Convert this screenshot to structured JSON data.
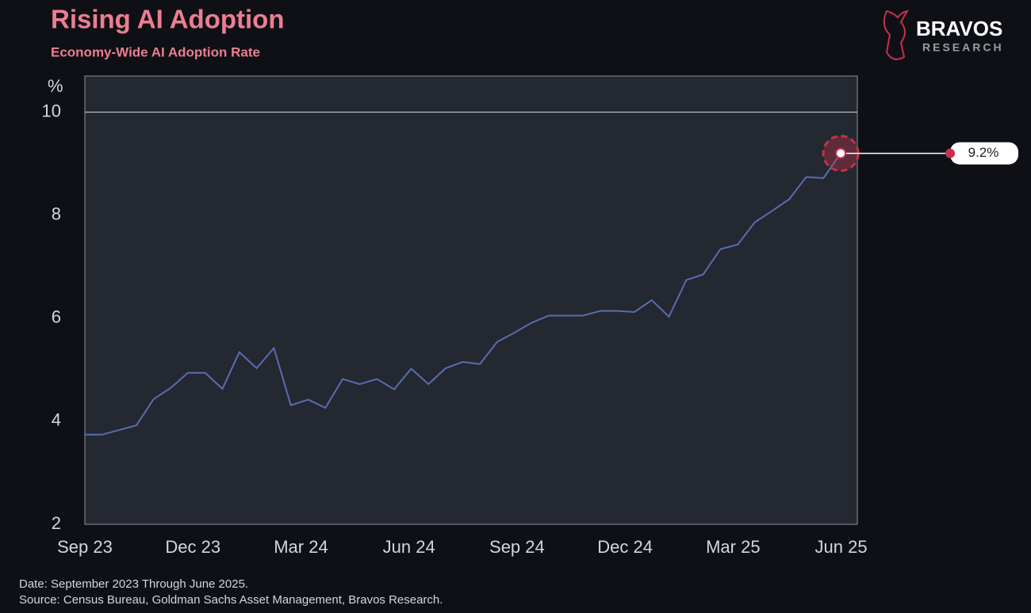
{
  "chart_data": {
    "type": "line",
    "title": "Rising AI Adoption",
    "subtitle": "Economy-Wide AI Adoption Rate",
    "y_label": "%",
    "brand": "BRAVOS",
    "brand_sub": "RESEARCH",
    "notes": [
      "Date: September 2023 Through June 2025.",
      "Source: Census Bureau, Goldman Sachs Asset Management, Bravos Research."
    ],
    "x": [
      0,
      0.48,
      0.95,
      1.43,
      1.91,
      2.39,
      2.86,
      3.34,
      3.82,
      4.29,
      4.77,
      5.25,
      5.72,
      6.2,
      6.68,
      7.16,
      7.63,
      8.11,
      8.59,
      9.06,
      9.54,
      10.02,
      10.49,
      10.97,
      11.45,
      11.93,
      12.4,
      12.88,
      13.36,
      13.83,
      14.31,
      14.79,
      15.26,
      15.74,
      16.22,
      16.7,
      17.17,
      17.65,
      18.13,
      18.6,
      19.08,
      19.56,
      20.03,
      20.51,
      20.99
    ],
    "series": [
      {
        "name": "Economy-Wide AI Adoption Rate",
        "color": "#5a6cb0",
        "values": [
          3.74,
          3.74,
          3.83,
          3.92,
          4.43,
          4.65,
          4.94,
          4.94,
          4.63,
          5.34,
          5.03,
          5.42,
          4.31,
          4.42,
          4.26,
          4.82,
          4.72,
          4.82,
          4.62,
          5.02,
          4.72,
          5.03,
          5.15,
          5.11,
          5.54,
          5.72,
          5.91,
          6.05,
          6.05,
          6.05,
          6.14,
          6.14,
          6.12,
          6.35,
          6.03,
          6.74,
          6.85,
          7.34,
          7.43,
          7.86,
          8.08,
          8.31,
          8.74,
          8.72,
          9.2
        ],
        "value_labels": {
          "44": "9.2%"
        }
      }
    ],
    "xlim": [
      0,
      21.45
    ],
    "xticks": [
      {
        "value": 0,
        "label": "Sep 23"
      },
      {
        "value": 3,
        "label": "Dec 23"
      },
      {
        "value": 6,
        "label": "Mar 24"
      },
      {
        "value": 9,
        "label": "Jun 24"
      },
      {
        "value": 12,
        "label": "Sep 24"
      },
      {
        "value": 15,
        "label": "Dec 24"
      },
      {
        "value": 18,
        "label": "Mar 25"
      },
      {
        "value": 21,
        "label": "Jun 25"
      }
    ],
    "ylim": [
      2,
      10.7
    ],
    "yticks": [
      2,
      4,
      6,
      8,
      10
    ],
    "reference_line": 10,
    "highlight_color": "#c8304a"
  }
}
